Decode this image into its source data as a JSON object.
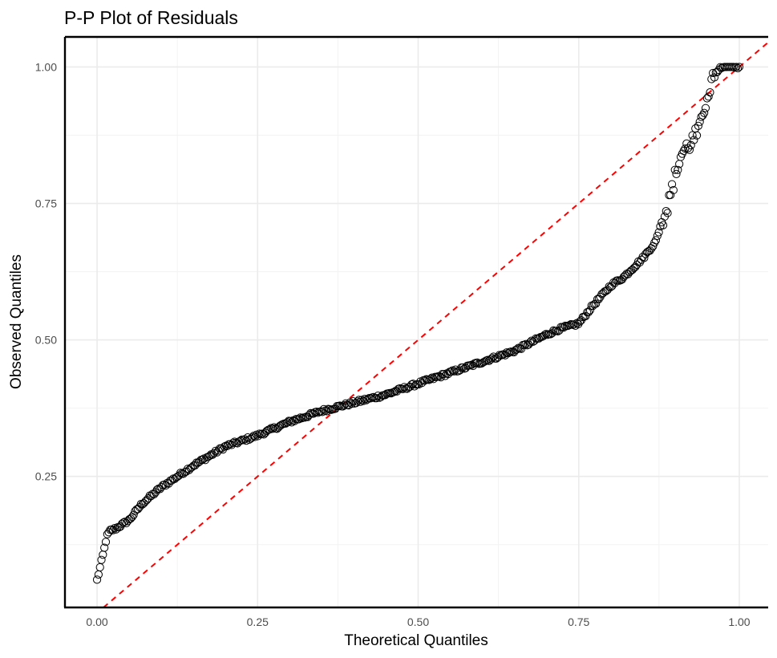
{
  "chart_data": {
    "type": "scatter",
    "title": "P-P Plot of Residuals",
    "xlabel": "Theoretical Quantiles",
    "ylabel": "Observed Quantiles",
    "xlim": [
      -0.05,
      1.045
    ],
    "ylim": [
      0.01,
      1.055
    ],
    "xticks": [
      0.0,
      0.25,
      0.5,
      0.75,
      1.0
    ],
    "xtick_labels": [
      "0.00",
      "0.25",
      "0.50",
      "0.75",
      "1.00"
    ],
    "yticks": [
      0.25,
      0.5,
      0.75,
      1.0
    ],
    "ytick_labels": [
      "0.25",
      "0.50",
      "0.75",
      "1.00"
    ],
    "grid": true,
    "point_style": "open-circle",
    "point_color": "#000000",
    "reference_line": {
      "slope": 1,
      "intercept": 0,
      "color": "#ff0000",
      "style": "dashed"
    },
    "profile": {
      "x": [
        0.0,
        0.004,
        0.01,
        0.015,
        0.02,
        0.03,
        0.05,
        0.07,
        0.1,
        0.15,
        0.2,
        0.25,
        0.3,
        0.35,
        0.4,
        0.45,
        0.5,
        0.55,
        0.6,
        0.65,
        0.7,
        0.72,
        0.75,
        0.77,
        0.8,
        0.82,
        0.85,
        0.87,
        0.88,
        0.89,
        0.9,
        0.91,
        0.92,
        0.93,
        0.94,
        0.95,
        0.96,
        0.97,
        0.98,
        0.99,
        1.0
      ],
      "y": [
        0.06,
        0.08,
        0.11,
        0.14,
        0.15,
        0.155,
        0.17,
        0.2,
        0.23,
        0.27,
        0.305,
        0.325,
        0.35,
        0.37,
        0.385,
        0.4,
        0.42,
        0.44,
        0.46,
        0.48,
        0.51,
        0.52,
        0.53,
        0.56,
        0.6,
        0.615,
        0.65,
        0.68,
        0.72,
        0.75,
        0.8,
        0.84,
        0.855,
        0.87,
        0.89,
        0.95,
        0.98,
        1.0,
        1.0,
        1.0,
        1.0
      ]
    },
    "n_points": 440
  }
}
